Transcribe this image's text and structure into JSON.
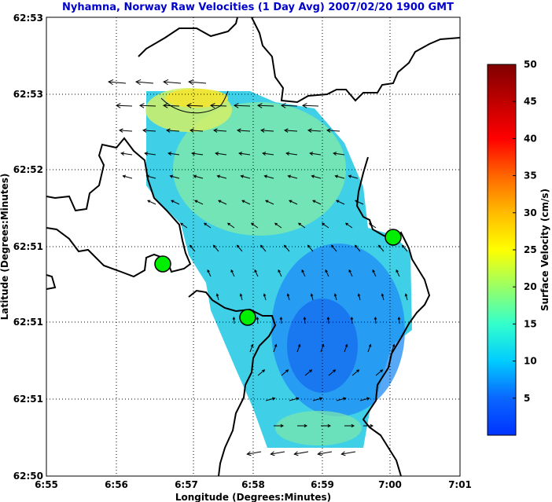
{
  "chart_data": {
    "type": "heatmap",
    "title": "Nyhamna, Norway Raw Velocities (1 Day Avg) 2007/02/20 1900 GMT",
    "xlabel": "Longitude (Degrees:Minutes)",
    "ylabel": "Latitude (Degrees:Minutes)",
    "x_ticks": [
      "6:55",
      "6:56",
      "6:57",
      "6:58",
      "6:59",
      "7:00",
      "7:01"
    ],
    "y_ticks": [
      "62:53",
      "62:53",
      "62:52",
      "62:51",
      "62:51",
      "62:51",
      "62:50"
    ],
    "grid": true,
    "colorbar": {
      "label": "Surface Velocity (cm/s)",
      "range": [
        0,
        50
      ],
      "ticks": [
        "5",
        "10",
        "15",
        "20",
        "25",
        "30",
        "35",
        "40",
        "45",
        "50"
      ]
    },
    "stations": [
      {
        "lon_min": 1.7,
        "lat_rel": 0.56
      },
      {
        "lon_min": 2.9,
        "lat_rel": 0.41
      },
      {
        "lon_min": 5.0,
        "lat_rel": 0.62
      }
    ],
    "colors": {
      "title": "#0000cc",
      "land": "#000000",
      "station": "#00ee00"
    }
  }
}
